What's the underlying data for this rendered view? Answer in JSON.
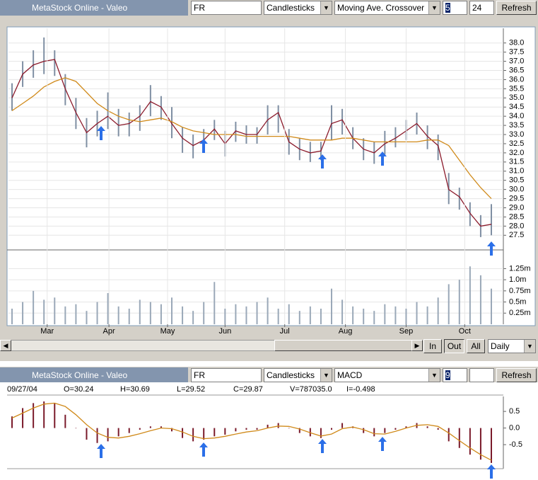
{
  "top_toolbar": {
    "title": "MetaStock Online - Valeo",
    "symbol": "FR",
    "style": "Candlesticks",
    "indicator": "Moving Ave. Crossover",
    "param1": "5",
    "param2": "24",
    "button": "Refresh"
  },
  "controls": {
    "zoom_in": "In",
    "zoom_out": "Out",
    "all": "All",
    "period": "Daily"
  },
  "bottom_toolbar": {
    "title": "MetaStock Online - Valeo",
    "symbol": "FR",
    "style": "Candlesticks",
    "indicator": "MACD",
    "param1": "9",
    "button": "Refresh"
  },
  "info": {
    "date": "09/27/04",
    "open": "O=30.24",
    "high": "H=30.69",
    "low": "L=29.52",
    "close": "C=29.87",
    "volume": "V=787035.0",
    "indicator": "I=-0.498"
  },
  "chart_data": [
    {
      "type": "candlestick",
      "candle_color": "#7f8fa3",
      "grid": true,
      "high": [
        35.8,
        37.0,
        37.6,
        38.3,
        37.6,
        36.3,
        35.0,
        33.9,
        34.3,
        35.3,
        34.4,
        34.2,
        34.6,
        35.7,
        35.1,
        34.5,
        33.4,
        33.0,
        33.3,
        33.8,
        33.2,
        33.7,
        33.5,
        33.4,
        34.6,
        34.6,
        33.3,
        32.8,
        32.6,
        32.6,
        34.6,
        34.4,
        33.4,
        32.8,
        32.6,
        33.2,
        33.4,
        33.8,
        34.2,
        33.5,
        33.0,
        30.9,
        30.1,
        29.3,
        28.6,
        29.2
      ],
      "low": [
        34.3,
        35.6,
        36.1,
        36.3,
        36.2,
        34.6,
        33.3,
        32.3,
        32.9,
        33.3,
        32.9,
        32.9,
        33.2,
        34.0,
        33.8,
        32.8,
        32.0,
        31.7,
        32.0,
        32.7,
        31.8,
        32.6,
        32.5,
        32.5,
        33.0,
        33.1,
        31.9,
        31.6,
        31.5,
        31.6,
        32.7,
        33.0,
        32.2,
        31.6,
        31.4,
        31.9,
        32.3,
        32.7,
        33.0,
        32.2,
        31.6,
        29.2,
        28.9,
        28.0,
        27.4,
        27.5
      ],
      "series": [
        {
          "color": "#8b1a2b",
          "values": [
            35.0,
            36.3,
            36.8,
            37.0,
            37.1,
            35.5,
            34.2,
            33.1,
            33.6,
            34.0,
            33.5,
            33.6,
            34.0,
            34.8,
            34.5,
            33.6,
            32.8,
            32.4,
            32.7,
            33.3,
            32.5,
            33.2,
            33.0,
            33.0,
            33.8,
            34.2,
            32.6,
            32.2,
            32.0,
            32.1,
            33.6,
            33.8,
            32.8,
            32.2,
            32.0,
            32.5,
            32.8,
            33.2,
            33.6,
            32.9,
            32.4,
            30.0,
            29.6,
            28.7,
            28.0,
            28.1
          ]
        },
        {
          "color": "#d08a1a",
          "values": [
            34.3,
            34.7,
            35.1,
            35.6,
            35.9,
            36.1,
            35.9,
            35.3,
            34.7,
            34.3,
            34.0,
            33.8,
            33.7,
            33.8,
            33.9,
            33.7,
            33.4,
            33.2,
            33.1,
            33.0,
            33.0,
            33.0,
            32.9,
            32.9,
            32.9,
            32.9,
            32.9,
            32.8,
            32.7,
            32.7,
            32.7,
            32.8,
            32.8,
            32.7,
            32.6,
            32.6,
            32.6,
            32.6,
            32.6,
            32.7,
            32.7,
            32.4,
            31.6,
            30.8,
            30.1,
            29.5
          ]
        }
      ],
      "ylim": [
        26.7,
        38.8
      ],
      "yticks": [
        27.5,
        {
          "value": 28,
          "label": "28.0"
        },
        28.5,
        {
          "value": 29,
          "label": "29.0"
        },
        29.5,
        {
          "value": 30,
          "label": "30.0"
        },
        30.5,
        {
          "value": 31,
          "label": "31.0"
        },
        31.5,
        {
          "value": 32,
          "label": "32.0"
        },
        32.5,
        {
          "value": 33,
          "label": "33.0"
        },
        33.5,
        {
          "value": 34,
          "label": "34.0"
        },
        34.5,
        {
          "value": 35,
          "label": "35.0"
        },
        35.5,
        {
          "value": 36,
          "label": "36.0"
        },
        36.5,
        {
          "value": 37,
          "label": "37.0"
        },
        37.5,
        {
          "value": 38,
          "label": "38.0"
        }
      ]
    },
    {
      "type": "bar",
      "color": "#9aa8b8",
      "grid": true,
      "values": [
        0.35,
        0.5,
        0.75,
        0.55,
        0.6,
        0.4,
        0.45,
        0.3,
        0.5,
        0.7,
        0.4,
        0.35,
        0.55,
        0.5,
        0.45,
        0.6,
        0.4,
        0.3,
        0.5,
        0.95,
        0.35,
        0.45,
        0.4,
        0.5,
        0.6,
        0.35,
        0.45,
        0.3,
        0.4,
        0.35,
        0.8,
        0.55,
        0.4,
        0.35,
        0.3,
        0.45,
        0.4,
        0.35,
        0.5,
        0.4,
        0.6,
        0.9,
        1.0,
        1.3,
        1.1,
        0.8
      ],
      "ylim": [
        0,
        1.67
      ],
      "yticks": [
        {
          "value": 0.25,
          "label": "0.25m"
        },
        {
          "value": 0.5,
          "label": "0.5m"
        },
        {
          "value": 0.75,
          "label": "0.75m"
        },
        {
          "value": 1.0,
          "label": "1.0m"
        },
        {
          "value": 1.25,
          "label": "1.25m"
        }
      ],
      "xlim": [
        0,
        45
      ],
      "xticks": [
        {
          "value": 3.3,
          "label": "Mar"
        },
        {
          "value": 9.1,
          "label": "Apr"
        },
        {
          "value": 14.6,
          "label": "May"
        },
        {
          "value": 20,
          "label": "Jun"
        },
        {
          "value": 25.6,
          "label": "Jul"
        },
        {
          "value": 31.3,
          "label": "Aug"
        },
        {
          "value": 37,
          "label": "Sep"
        },
        {
          "value": 42.5,
          "label": "Oct"
        }
      ]
    },
    {
      "type": "bar",
      "color": "#7a1a2a",
      "grid": false,
      "values": [
        0.35,
        0.6,
        0.75,
        0.8,
        0.75,
        0.4,
        0.0,
        -0.35,
        -0.45,
        -0.4,
        -0.25,
        -0.15,
        -0.05,
        0.05,
        0.05,
        -0.1,
        -0.3,
        -0.4,
        -0.35,
        -0.25,
        -0.2,
        -0.1,
        -0.05,
        -0.05,
        0.1,
        0.15,
        0.0,
        -0.15,
        -0.25,
        -0.3,
        -0.05,
        0.15,
        0.05,
        -0.15,
        -0.25,
        -0.15,
        -0.05,
        0.05,
        0.15,
        0.05,
        -0.05,
        -0.4,
        -0.6,
        -0.8,
        -0.95,
        -1.05
      ],
      "series": [
        {
          "color": "#d08a1a",
          "values": [
            0.3,
            0.45,
            0.6,
            0.72,
            0.75,
            0.65,
            0.4,
            0.1,
            -0.15,
            -0.28,
            -0.3,
            -0.25,
            -0.17,
            -0.08,
            0.0,
            -0.02,
            -0.12,
            -0.25,
            -0.32,
            -0.3,
            -0.25,
            -0.18,
            -0.12,
            -0.08,
            0.0,
            0.06,
            0.05,
            -0.03,
            -0.14,
            -0.24,
            -0.18,
            -0.02,
            0.03,
            -0.05,
            -0.17,
            -0.18,
            -0.1,
            0.0,
            0.08,
            0.1,
            0.05,
            -0.15,
            -0.38,
            -0.6,
            -0.8,
            -0.97
          ]
        }
      ],
      "ylim": [
        -1.18,
        0.95
      ],
      "yticks": [
        0.5,
        {
          "value": 0,
          "label": "0.0"
        },
        -0.5
      ]
    }
  ]
}
